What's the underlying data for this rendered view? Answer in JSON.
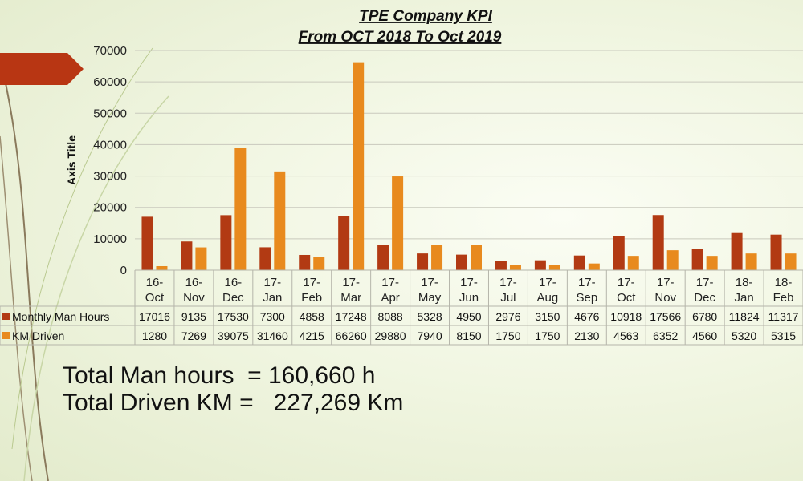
{
  "chart_data": {
    "type": "bar",
    "title": "TPE Company KPI",
    "subtitle": "From OCT 2018  To Oct   2019",
    "ylabel": "Axis Title",
    "ylim": [
      0,
      70000
    ],
    "yticks": [
      0,
      10000,
      20000,
      30000,
      40000,
      50000,
      60000,
      70000
    ],
    "grid": true,
    "data_table": true,
    "categories": [
      [
        "16-",
        "Oct"
      ],
      [
        "16-",
        "Nov"
      ],
      [
        "16-",
        "Dec"
      ],
      [
        "17-",
        "Jan"
      ],
      [
        "17-",
        "Feb"
      ],
      [
        "17-",
        "Mar"
      ],
      [
        "17-",
        "Apr"
      ],
      [
        "17-",
        "May"
      ],
      [
        "17-",
        "Jun"
      ],
      [
        "17-",
        "Jul"
      ],
      [
        "17-",
        "Aug"
      ],
      [
        "17-",
        "Sep"
      ],
      [
        "17-",
        "Oct"
      ],
      [
        "17-",
        "Nov"
      ],
      [
        "17-",
        "Dec"
      ],
      [
        "18-",
        "Jan"
      ],
      [
        "18-",
        "Feb"
      ]
    ],
    "series": [
      {
        "name": "Monthly Man Hours",
        "color": "#b23a13",
        "values": [
          17016,
          9135,
          17530,
          7300,
          4858,
          17248,
          8088,
          5328,
          4950,
          2976,
          3150,
          4676,
          10918,
          17566,
          6780,
          11824,
          11317
        ]
      },
      {
        "name": "KM Driven",
        "color": "#e88a1e",
        "values": [
          1280,
          7269,
          39075,
          31460,
          4215,
          66260,
          29880,
          7940,
          8150,
          1750,
          1750,
          2130,
          4563,
          6352,
          4560,
          5320,
          5315
        ]
      }
    ]
  },
  "totals": {
    "man_hours": "Total Man hours  = 160,660 h",
    "driven_km": "Total Driven KM =   227,269 Km"
  },
  "theme": {
    "accent": "#b83613",
    "deco_line": "#8a7a5c"
  }
}
